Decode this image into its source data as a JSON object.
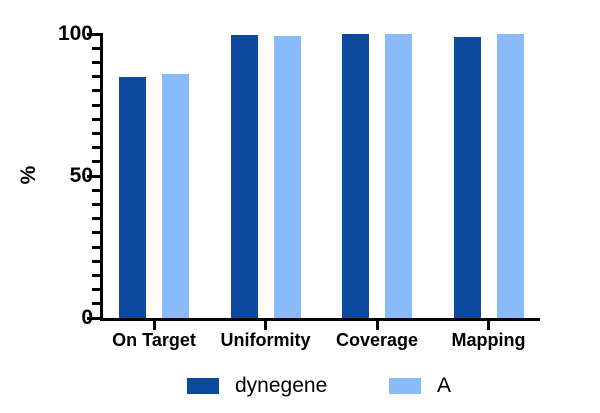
{
  "chart_data": {
    "type": "bar",
    "title": "",
    "xlabel": "",
    "ylabel": "%",
    "categories": [
      "On Target",
      "Uniformity",
      "Coverage",
      "Mapping"
    ],
    "series": [
      {
        "name": "dynegene",
        "color": "#0b499c",
        "values": [
          85,
          99.5,
          100,
          99
        ]
      },
      {
        "name": "A",
        "color": "#88bbf8",
        "values": [
          86,
          99.4,
          100,
          100
        ]
      }
    ],
    "ylim": [
      0,
      100
    ],
    "y_major_ticks": [
      0,
      50,
      100
    ],
    "y_minor_tick_step": 5,
    "grid": false,
    "legend_position": "bottom",
    "axis_color": "#000000",
    "text_color": "#000000"
  }
}
